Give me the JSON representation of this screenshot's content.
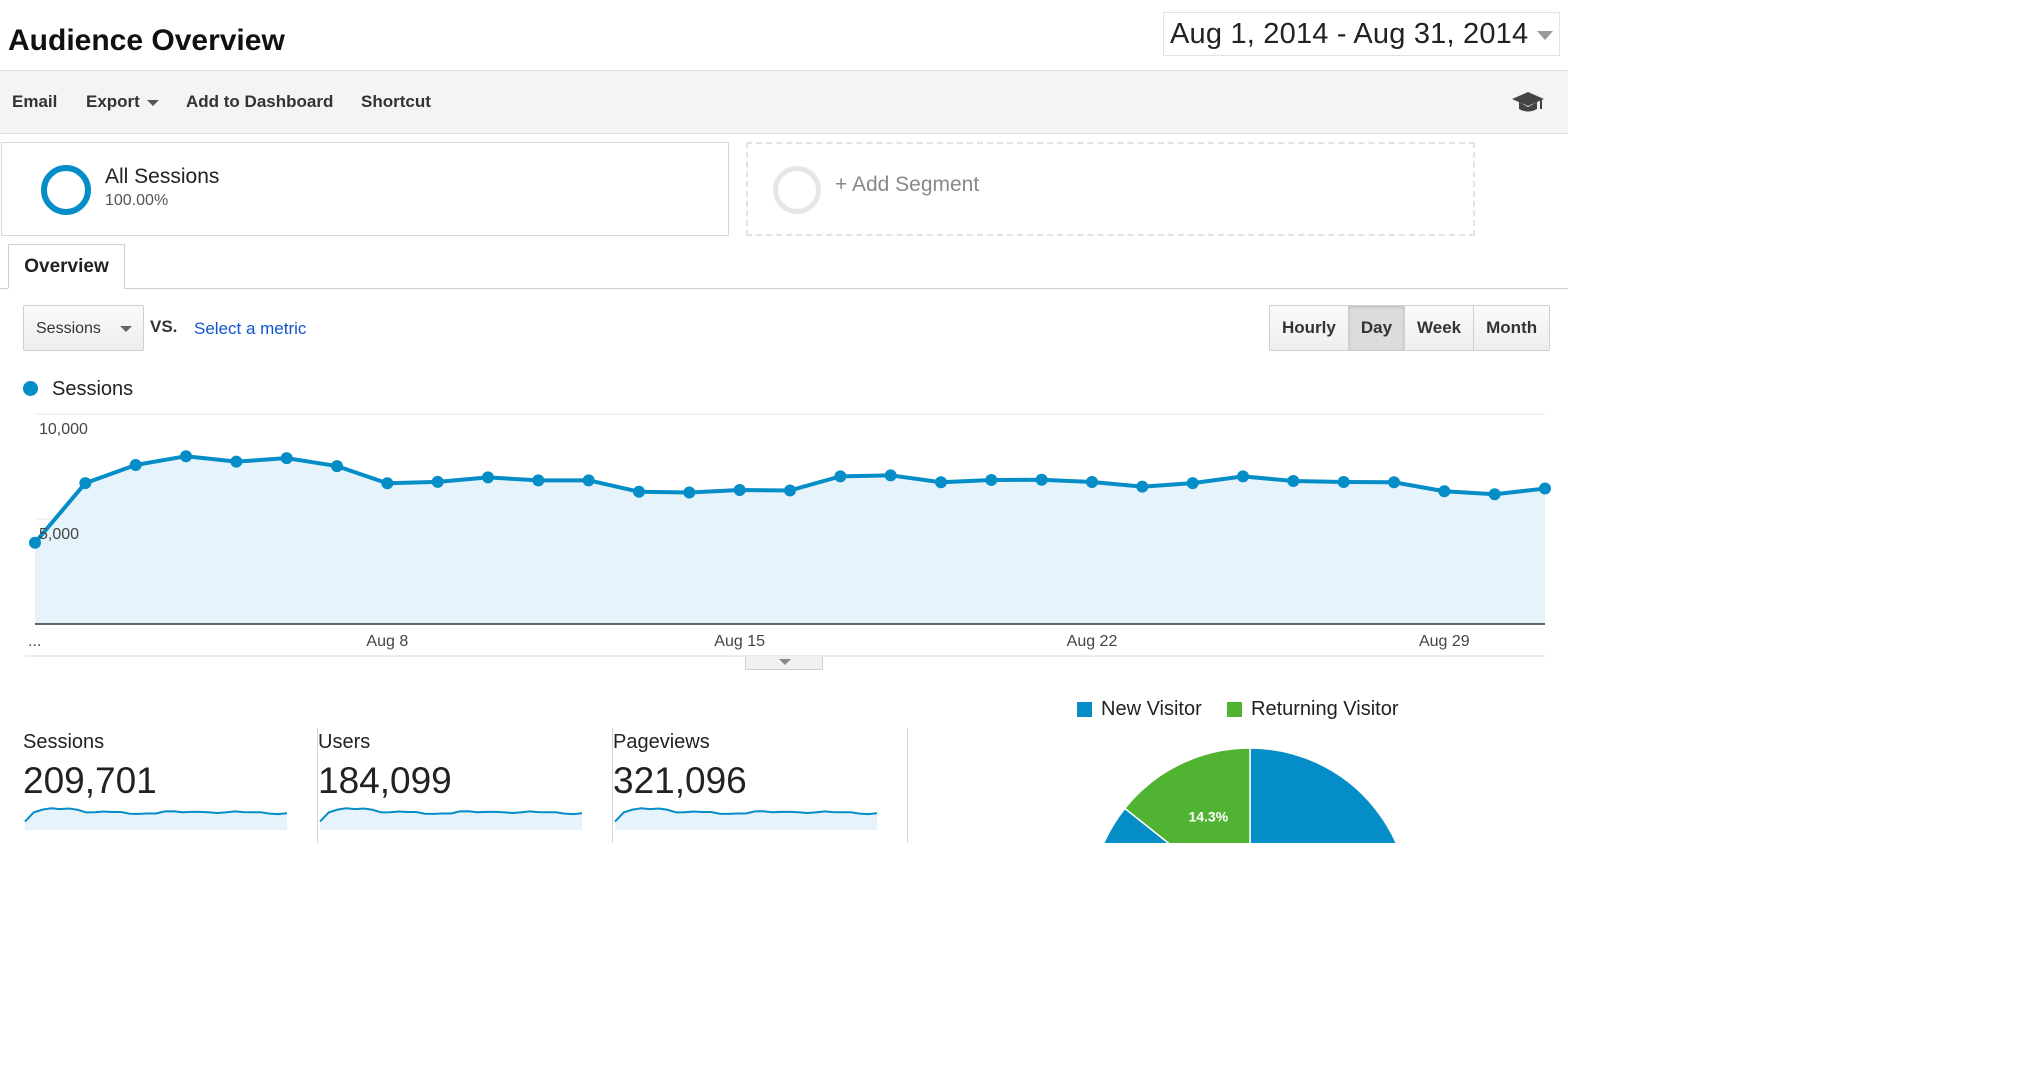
{
  "page": {
    "title": "Audience Overview"
  },
  "date_range": {
    "label": "Aug 1, 2014 - Aug 31, 2014"
  },
  "toolbar": {
    "email": "Email",
    "export": "Export",
    "add_to_dashboard": "Add to Dashboard",
    "shortcut": "Shortcut",
    "help_icon": "graduation-cap-icon"
  },
  "segments": {
    "all": {
      "name": "All Sessions",
      "percent": "100.00%"
    },
    "add": {
      "label": "+ Add Segment"
    }
  },
  "tabs": {
    "overview": "Overview"
  },
  "controls": {
    "metric": "Sessions",
    "vs": "VS.",
    "select_metric": "Select a metric",
    "intervals": [
      "Hourly",
      "Day",
      "Week",
      "Month"
    ],
    "active_interval": "Day"
  },
  "legend": {
    "series": "Sessions"
  },
  "colors": {
    "series": "#058dc7",
    "area": "#e6f3fa",
    "new_visitor": "#058dc7",
    "returning_visitor": "#50b432"
  },
  "chart_data": {
    "type": "area",
    "series": [
      {
        "name": "Sessions",
        "values": [
          3870,
          6710,
          7570,
          7990,
          7730,
          7900,
          7520,
          6700,
          6770,
          6980,
          6840,
          6840,
          6300,
          6260,
          6380,
          6360,
          7030,
          7080,
          6750,
          6860,
          6870,
          6760,
          6540,
          6710,
          7030,
          6810,
          6760,
          6750,
          6320,
          6180,
          6450
        ]
      }
    ],
    "x_labels": [
      {
        "text": "...",
        "day": 1
      },
      {
        "text": "Aug 8",
        "day": 8
      },
      {
        "text": "Aug 15",
        "day": 15
      },
      {
        "text": "Aug 22",
        "day": 22
      },
      {
        "text": "Aug 29",
        "day": 29
      }
    ],
    "y_ticks": [
      {
        "value": 10000,
        "label": "10,000"
      },
      {
        "value": 5000,
        "label": "5,000"
      }
    ],
    "ylim": [
      0,
      10000
    ],
    "grid": true
  },
  "scorecards": [
    {
      "label": "Sessions",
      "value": "209,701"
    },
    {
      "label": "Users",
      "value": "184,099"
    },
    {
      "label": "Pageviews",
      "value": "321,096"
    }
  ],
  "pie": {
    "legend": {
      "new_visitor": "New Visitor",
      "returning_visitor": "Returning Visitor"
    },
    "slices": [
      {
        "name": "New Visitor",
        "value": 85.7
      },
      {
        "name": "Returning Visitor",
        "value": 14.3,
        "label": "14.3%"
      }
    ]
  }
}
